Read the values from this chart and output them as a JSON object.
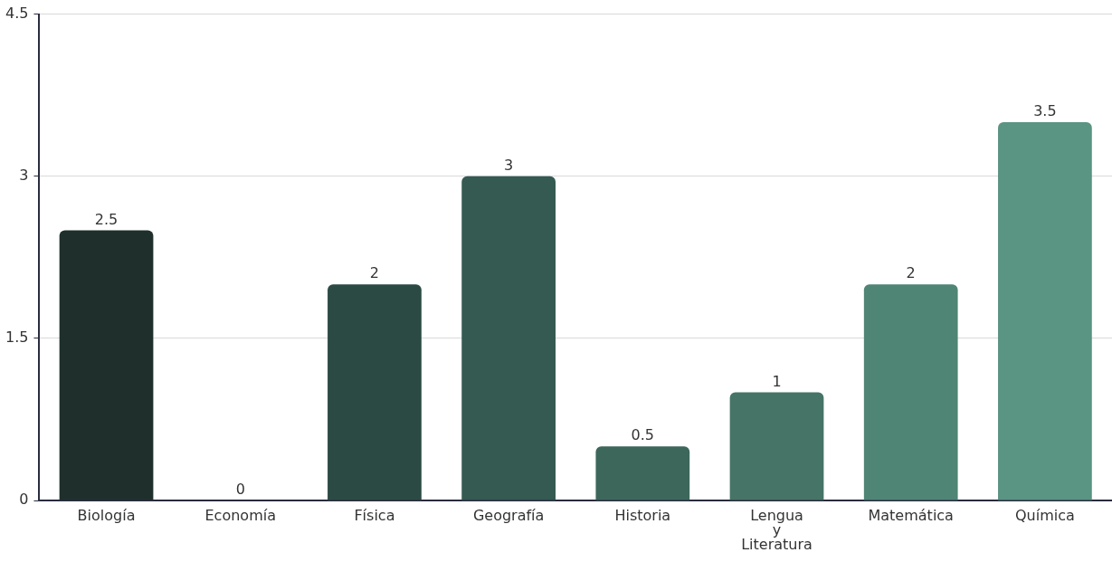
{
  "chart_data": {
    "type": "bar",
    "categories": [
      "Biología",
      "Economía",
      "Física",
      "Geografía",
      "Historia",
      "Lengua y Literatura",
      "Matemática",
      "Química"
    ],
    "values": [
      2.5,
      0,
      2,
      3,
      0.5,
      1,
      2,
      3.5
    ],
    "colors": [
      "#1f302c",
      "#243833",
      "#2c4a44",
      "#345a51",
      "#3d675b",
      "#467466",
      "#4f8575",
      "#5a9482"
    ],
    "ylim": [
      0,
      4.5
    ],
    "yticks": [
      0,
      1.5,
      3,
      4.5
    ],
    "grid": "y",
    "data_labels": true
  }
}
